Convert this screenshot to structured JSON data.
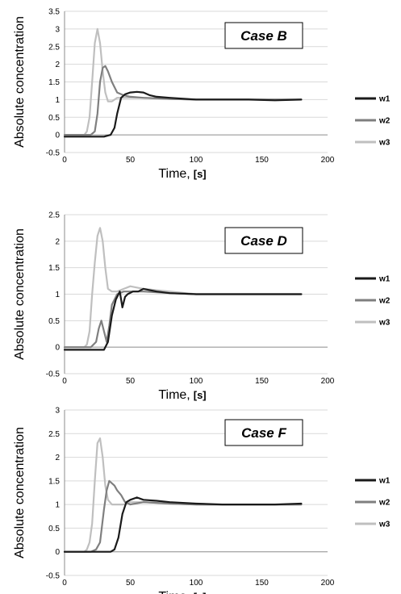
{
  "chart_data": [
    {
      "type": "line",
      "annotation": "Case B",
      "xlabel": "Time,",
      "xlabel_unit": "[s]",
      "ylabel": "Absolute concentration",
      "xlim": [
        0,
        200
      ],
      "ylim": [
        -0.5,
        3.5
      ],
      "xticks": [
        "0",
        "50",
        "100",
        "150",
        "200"
      ],
      "yticks": [
        "-0.5",
        "0",
        "0.5",
        "1",
        "1.5",
        "2",
        "2.5",
        "3",
        "3.5"
      ],
      "grid": true,
      "legend": "right",
      "series": [
        {
          "name": "w1",
          "color": "#1a1a1a",
          "x": [
            0,
            10,
            20,
            30,
            35,
            38,
            40,
            43,
            46,
            50,
            55,
            60,
            65,
            70,
            80,
            100,
            120,
            140,
            160,
            180
          ],
          "y": [
            -0.05,
            -0.05,
            -0.05,
            -0.05,
            0.0,
            0.2,
            0.6,
            1.05,
            1.15,
            1.2,
            1.22,
            1.2,
            1.12,
            1.08,
            1.05,
            1.0,
            1.0,
            1.0,
            0.98,
            1.0
          ]
        },
        {
          "name": "w2",
          "color": "#7f7f7f",
          "x": [
            0,
            10,
            20,
            23,
            25,
            27,
            29,
            31,
            33,
            36,
            40,
            45,
            50,
            60,
            80,
            100,
            120,
            140,
            160,
            180
          ],
          "y": [
            0.0,
            0.0,
            0.0,
            0.1,
            0.6,
            1.5,
            1.9,
            1.95,
            1.8,
            1.5,
            1.2,
            1.12,
            1.08,
            1.05,
            1.02,
            1.0,
            1.0,
            1.0,
            1.0,
            1.0
          ]
        },
        {
          "name": "w3",
          "color": "#bfbfbf",
          "x": [
            0,
            10,
            15,
            17,
            19,
            21,
            23,
            25,
            27,
            29,
            31,
            33,
            36,
            40,
            50,
            60,
            80,
            100,
            140,
            180
          ],
          "y": [
            0.0,
            0.0,
            0.0,
            0.1,
            0.5,
            1.5,
            2.6,
            3.0,
            2.6,
            1.8,
            1.2,
            0.95,
            0.95,
            1.05,
            1.05,
            1.05,
            1.02,
            1.0,
            1.0,
            1.0
          ]
        }
      ]
    },
    {
      "type": "line",
      "annotation": "Case D",
      "xlabel": "Time,",
      "xlabel_unit": "[s]",
      "ylabel": "Absolute concentration",
      "xlim": [
        0,
        200
      ],
      "ylim": [
        -0.5,
        2.5
      ],
      "xticks": [
        "0",
        "50",
        "100",
        "150",
        "200"
      ],
      "yticks": [
        "-0.5",
        "0",
        "0.5",
        "1",
        "1.5",
        "2",
        "2.5"
      ],
      "grid": true,
      "legend": "right",
      "series": [
        {
          "name": "w1",
          "color": "#1a1a1a",
          "x": [
            0,
            10,
            20,
            30,
            33,
            36,
            39,
            42,
            44,
            46,
            48,
            52,
            56,
            60,
            70,
            80,
            100,
            120,
            140,
            160,
            180
          ],
          "y": [
            -0.05,
            -0.05,
            -0.05,
            -0.05,
            0.1,
            0.6,
            0.9,
            1.05,
            0.75,
            0.95,
            1.0,
            1.05,
            1.05,
            1.1,
            1.05,
            1.02,
            1.0,
            1.0,
            1.0,
            1.0,
            1.0
          ]
        },
        {
          "name": "w2",
          "color": "#7f7f7f",
          "x": [
            0,
            10,
            20,
            24,
            26,
            28,
            30,
            32,
            34,
            36,
            40,
            45,
            50,
            60,
            80,
            100,
            120,
            140,
            160,
            180
          ],
          "y": [
            0.0,
            0.0,
            0.0,
            0.1,
            0.35,
            0.5,
            0.3,
            0.1,
            0.4,
            0.8,
            1.0,
            1.05,
            1.05,
            1.05,
            1.02,
            1.0,
            1.0,
            1.0,
            1.0,
            1.0
          ]
        },
        {
          "name": "w3",
          "color": "#bfbfbf",
          "x": [
            0,
            10,
            15,
            17,
            19,
            21,
            23,
            25,
            27,
            29,
            31,
            33,
            36,
            40,
            45,
            50,
            60,
            80,
            100,
            140,
            180
          ],
          "y": [
            0.0,
            0.0,
            0.0,
            0.05,
            0.3,
            1.0,
            1.6,
            2.1,
            2.25,
            2.0,
            1.5,
            1.1,
            1.05,
            1.05,
            1.1,
            1.15,
            1.1,
            1.05,
            1.0,
            1.0,
            1.0
          ]
        }
      ]
    },
    {
      "type": "line",
      "annotation": "Case F",
      "xlabel": "Time,",
      "xlabel_unit": "[s]",
      "ylabel": "Absolute concentration",
      "xlim": [
        0,
        200
      ],
      "ylim": [
        -0.5,
        3
      ],
      "xticks": [
        "0",
        "50",
        "100",
        "150",
        "200"
      ],
      "yticks": [
        "-0.5",
        "0",
        "0.5",
        "1",
        "1.5",
        "2",
        "2.5",
        "3"
      ],
      "grid": true,
      "legend": "right",
      "series": [
        {
          "name": "w1",
          "color": "#1a1a1a",
          "x": [
            0,
            10,
            20,
            30,
            35,
            38,
            41,
            44,
            47,
            50,
            55,
            60,
            70,
            80,
            100,
            120,
            140,
            160,
            180
          ],
          "y": [
            0.0,
            0.0,
            0.0,
            0.0,
            0.0,
            0.05,
            0.3,
            0.8,
            1.05,
            1.1,
            1.15,
            1.1,
            1.08,
            1.05,
            1.02,
            1.0,
            1.0,
            1.0,
            1.02
          ]
        },
        {
          "name": "w2",
          "color": "#7f7f7f",
          "x": [
            0,
            10,
            20,
            24,
            27,
            30,
            32,
            34,
            36,
            38,
            40,
            43,
            46,
            50,
            60,
            80,
            100,
            120,
            140,
            160,
            180
          ],
          "y": [
            0.0,
            0.0,
            0.0,
            0.05,
            0.2,
            0.9,
            1.3,
            1.5,
            1.45,
            1.4,
            1.3,
            1.2,
            1.05,
            1.0,
            1.05,
            1.02,
            1.0,
            1.0,
            1.0,
            1.0,
            1.0
          ]
        },
        {
          "name": "w3",
          "color": "#bfbfbf",
          "x": [
            0,
            10,
            15,
            17,
            19,
            21,
            23,
            25,
            27,
            29,
            31,
            33,
            36,
            40,
            45,
            50,
            60,
            80,
            100,
            140,
            180
          ],
          "y": [
            0.0,
            0.0,
            0.0,
            0.05,
            0.2,
            0.6,
            1.5,
            2.3,
            2.4,
            2.0,
            1.4,
            1.1,
            1.0,
            1.0,
            1.0,
            1.05,
            1.05,
            1.02,
            1.0,
            1.0,
            1.0
          ]
        }
      ]
    }
  ]
}
